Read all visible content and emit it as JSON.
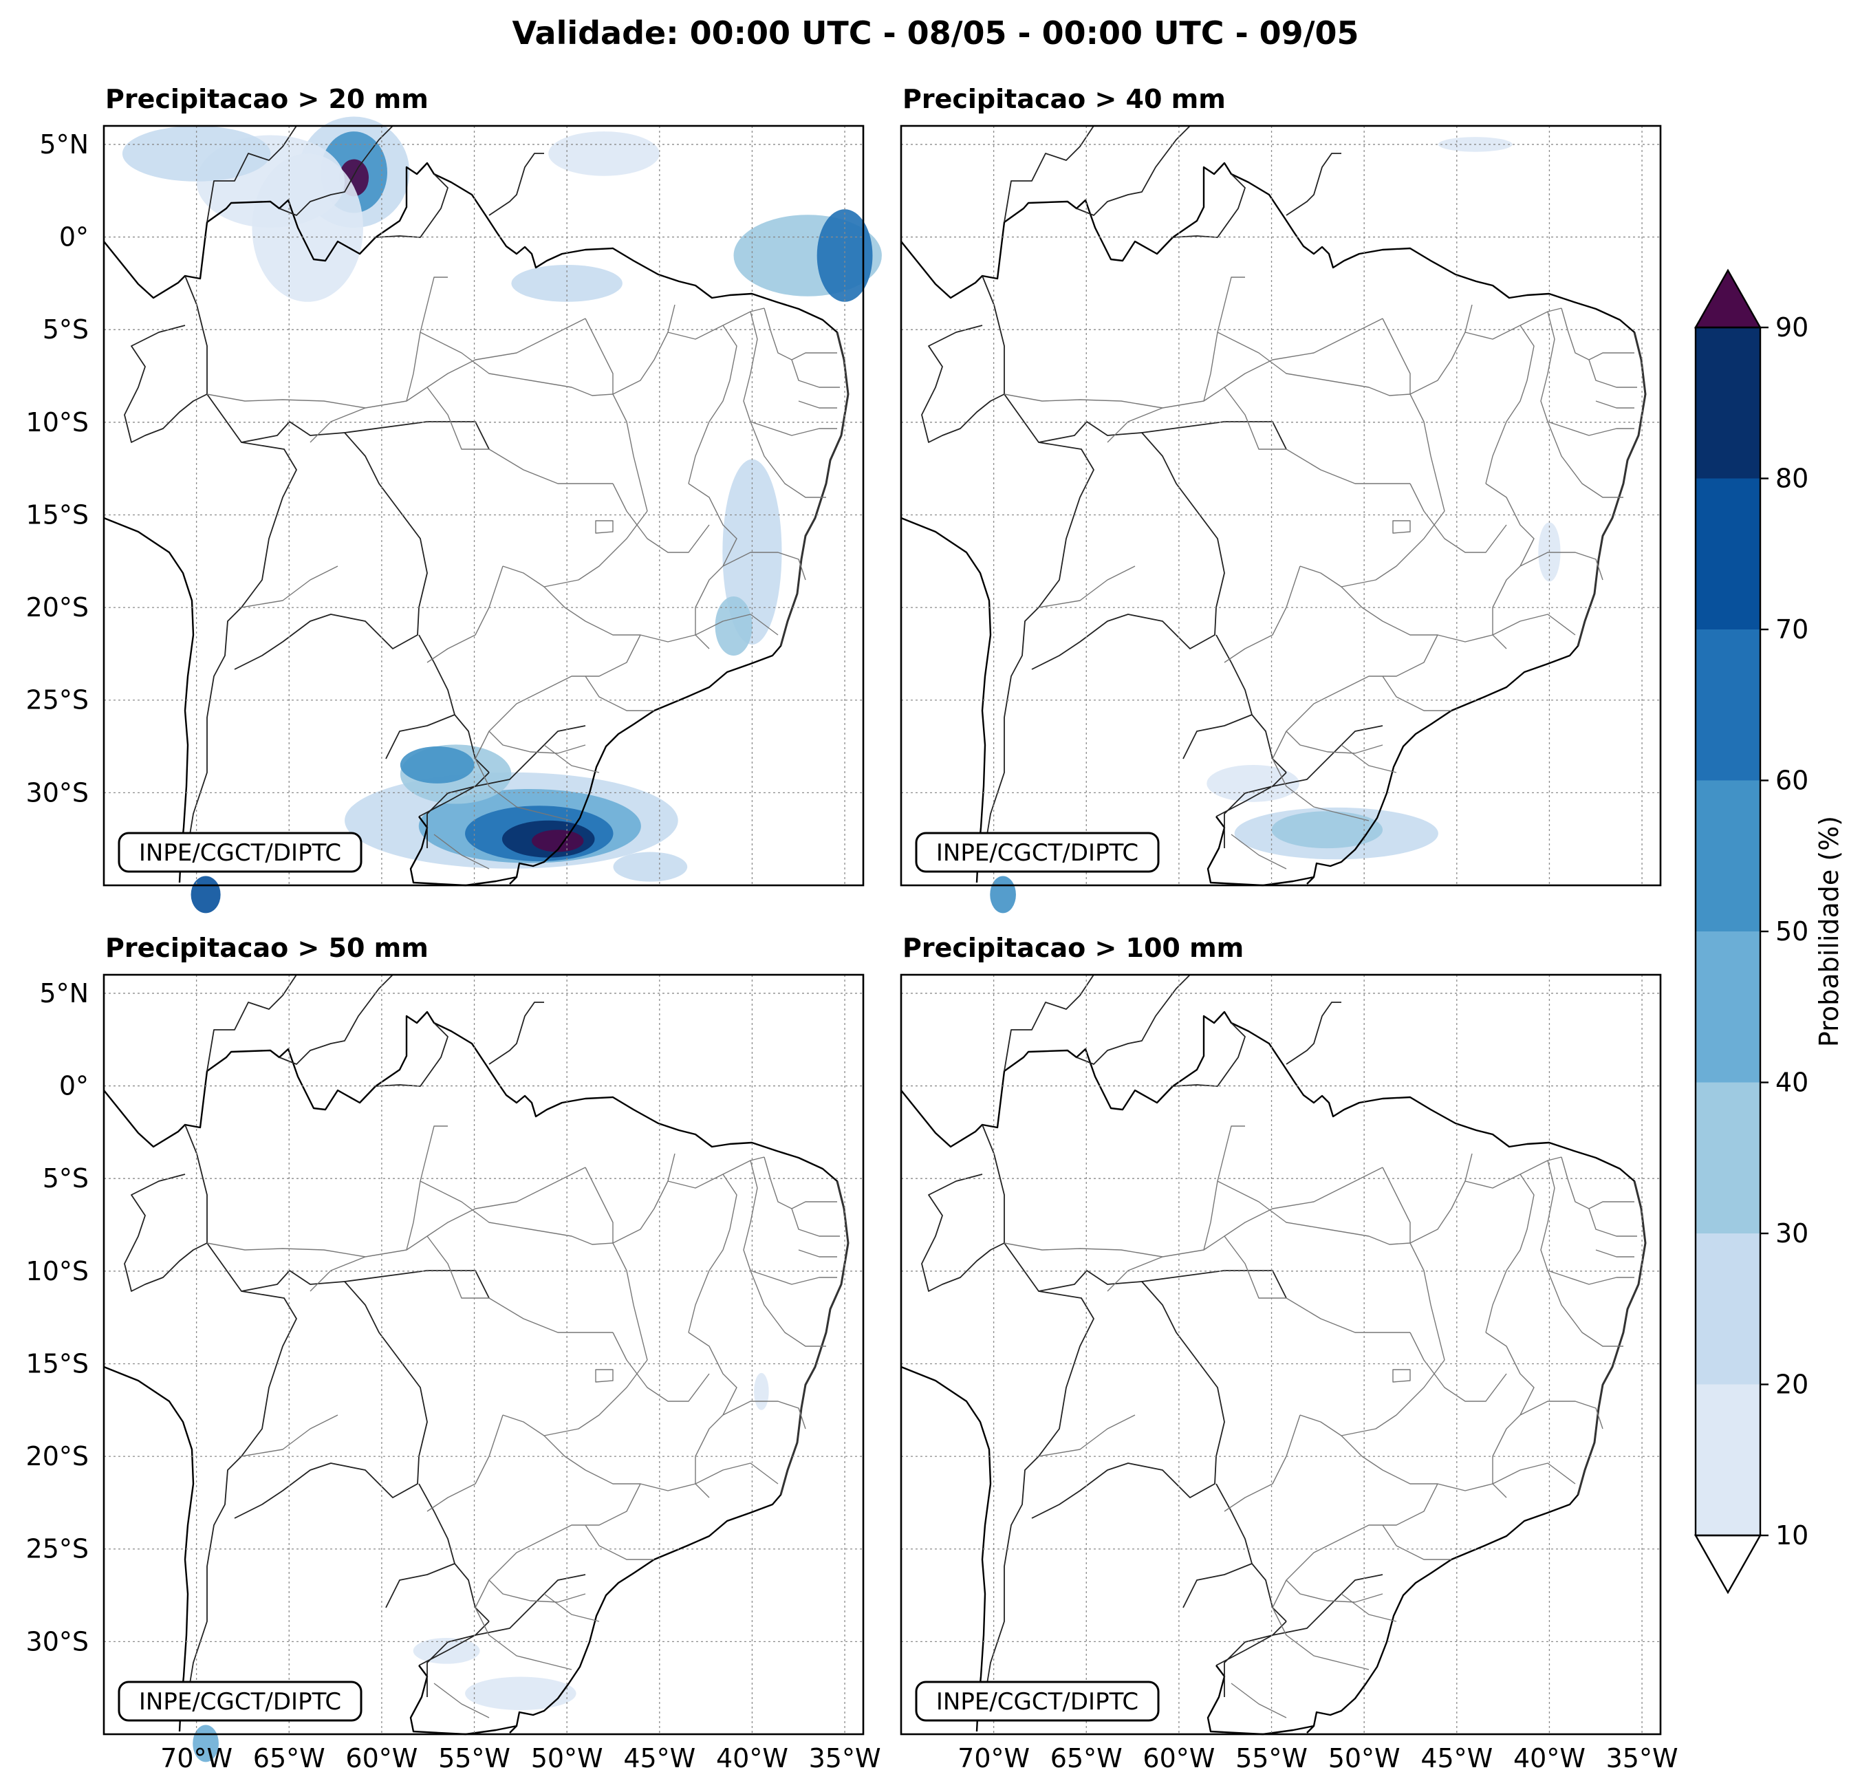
{
  "title": "Validade: 00:00 UTC - 08/05 - 00:00 UTC - 09/05",
  "credit": "INPE/CGCT/DIPTC",
  "panels": [
    {
      "title": "Precipitacao > 20 mm",
      "threshold_mm": 20
    },
    {
      "title": "Precipitacao > 40 mm",
      "threshold_mm": 40
    },
    {
      "title": "Precipitacao > 50 mm",
      "threshold_mm": 50
    },
    {
      "title": "Precipitacao > 100 mm",
      "threshold_mm": 100
    }
  ],
  "map_extent": {
    "lon": [
      -75,
      -34
    ],
    "lat": [
      -35,
      6
    ]
  },
  "lat_ticks": [
    "5°N",
    "0°",
    "5°S",
    "10°S",
    "15°S",
    "20°S",
    "25°S",
    "30°S"
  ],
  "lon_ticks": [
    "70°W",
    "65°W",
    "60°W",
    "55°W",
    "50°W",
    "45°W",
    "40°W",
    "35°W"
  ],
  "colorbar": {
    "label": "Probabilidade (%)",
    "levels": [
      10,
      20,
      30,
      40,
      50,
      60,
      70,
      80,
      90
    ],
    "tick_labels": [
      "10",
      "20",
      "30",
      "40",
      "50",
      "60",
      "70",
      "80",
      "90"
    ],
    "colors": [
      "#dde8f5",
      "#c6dbef",
      "#9ecae1",
      "#6baed6",
      "#4292c6",
      "#2171b5",
      "#08519c",
      "#08306b"
    ],
    "over_color": "#4a0a4a",
    "under_color": "#ffffff"
  }
}
